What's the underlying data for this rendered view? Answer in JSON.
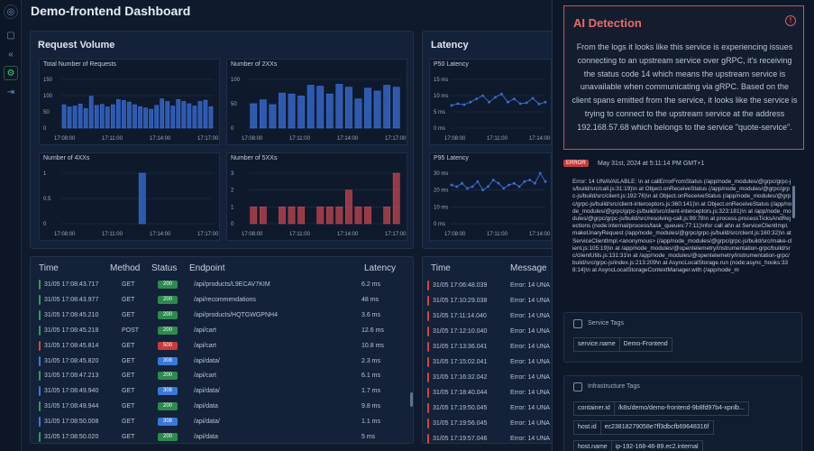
{
  "header": {
    "title": "Demo-frontend Dashboard"
  },
  "rail": [
    {
      "name": "globe-icon",
      "glyph": "◎"
    },
    {
      "name": "panel-icon",
      "glyph": "▢"
    },
    {
      "name": "collapse-icon",
      "glyph": "«"
    },
    {
      "name": "settings-icon",
      "glyph": "⚙"
    },
    {
      "name": "expand-icon",
      "glyph": "⇥"
    }
  ],
  "request_volume": {
    "title": "Request Volume",
    "charts": [
      {
        "title": "Total Number of Requests",
        "yticks": [
          "150",
          "100",
          "50",
          "0"
        ],
        "ymax": 150,
        "xticks": [
          "17:08:00",
          "17:11:00",
          "17:14:00",
          "17:17:00"
        ],
        "color": "#3a6fd8",
        "values": [
          72,
          65,
          68,
          74,
          60,
          98,
          70,
          73,
          65,
          72,
          88,
          85,
          80,
          72,
          66,
          62,
          58,
          70,
          90,
          82,
          68,
          88,
          82,
          75,
          68,
          82,
          86,
          66
        ]
      },
      {
        "title": "Number of 2XXs",
        "yticks": [
          "100",
          "50",
          "0"
        ],
        "ymax": 100,
        "xticks": [
          "17:08:00",
          "17:11:00",
          "17:14:00",
          "17:17:00"
        ],
        "color": "#3a6fd8",
        "values": [
          50,
          58,
          48,
          72,
          70,
          66,
          88,
          86,
          70,
          90,
          84,
          60,
          82,
          76,
          88,
          84
        ]
      },
      {
        "title": "Number of 4XXs",
        "yticks": [
          "1",
          "0.5",
          "0"
        ],
        "ymax": 1,
        "xticks": [
          "17:08:00",
          "17:11:00",
          "17:14:00",
          "17:17:00"
        ],
        "color": "#3a6fd8",
        "values": [
          0,
          0,
          0,
          0,
          0,
          0,
          0,
          0,
          1,
          0,
          0,
          0,
          0,
          0,
          0,
          0
        ]
      },
      {
        "title": "Number of 5XXs",
        "yticks": [
          "3",
          "2",
          "1",
          "0"
        ],
        "ymax": 3,
        "xticks": [
          "17:08:00",
          "17:11:00",
          "17:14:00",
          "17:17:00"
        ],
        "color": "#c4454f",
        "values": [
          1,
          1,
          0,
          1,
          1,
          1,
          0,
          1,
          1,
          1,
          2,
          1,
          1,
          0,
          1,
          3
        ]
      }
    ]
  },
  "latency": {
    "title": "Latency",
    "charts": [
      {
        "title": "P50 Latency",
        "yticks": [
          "15 ms",
          "10 ms",
          "5 ms",
          "0 ms"
        ],
        "ymax": 15,
        "xticks": [
          "17:08:00",
          "17:11:00",
          "17:14:00"
        ],
        "values": [
          7,
          7.5,
          7.2,
          8,
          9,
          10,
          8,
          9.5,
          10.5,
          8,
          9,
          7.5,
          7.8,
          9.2,
          7.4,
          8
        ]
      },
      {
        "title": "P95 Latency",
        "yticks": [
          "30 ms",
          "20 ms",
          "10 ms",
          "0 ms"
        ],
        "ymax": 30,
        "xticks": [
          "17:08:00",
          "17:11:00",
          "17:14:00"
        ],
        "values": [
          23,
          22,
          24,
          21,
          22,
          25,
          20,
          22,
          26,
          24,
          21,
          23,
          24,
          22,
          25,
          26,
          24,
          30,
          25
        ]
      }
    ]
  },
  "requests_table": {
    "headers": {
      "time": "Time",
      "method": "Method",
      "status": "Status",
      "endpoint": "Endpoint",
      "latency": "Latency"
    },
    "rows": [
      {
        "time": "31/05 17:08:43.717",
        "method": "GET",
        "status": "200",
        "endpoint": "/api/products/L9ECAV7KIM",
        "latency": "6.2 ms",
        "color": "#2e9c5a"
      },
      {
        "time": "31/05 17:08:43.977",
        "method": "GET",
        "status": "200",
        "endpoint": "/api/recommendations",
        "latency": "48 ms",
        "color": "#2e9c5a"
      },
      {
        "time": "31/05 17:08:45.210",
        "method": "GET",
        "status": "200",
        "endpoint": "/api/products/HQTGWGPNH4",
        "latency": "3.6 ms",
        "color": "#2e9c5a"
      },
      {
        "time": "31/05 17:08:45.218",
        "method": "POST",
        "status": "200",
        "endpoint": "/api/cart",
        "latency": "12.6 ms",
        "color": "#2e9c5a"
      },
      {
        "time": "31/05 17:08:45.814",
        "method": "GET",
        "status": "500",
        "endpoint": "/api/cart",
        "latency": "10.8 ms",
        "color": "#d6443c"
      },
      {
        "time": "31/05 17:08:45.820",
        "method": "GET",
        "status": "308",
        "endpoint": "/api/data/",
        "latency": "2.3 ms",
        "color": "#3a78d8"
      },
      {
        "time": "31/05 17:08:47.213",
        "method": "GET",
        "status": "200",
        "endpoint": "/api/cart",
        "latency": "6.1 ms",
        "color": "#2e9c5a"
      },
      {
        "time": "31/05 17:08:49.940",
        "method": "GET",
        "status": "308",
        "endpoint": "/api/data/",
        "latency": "1.7 ms",
        "color": "#3a78d8"
      },
      {
        "time": "31/05 17:08:49.944",
        "method": "GET",
        "status": "200",
        "endpoint": "/api/data",
        "latency": "9.8 ms",
        "color": "#2e9c5a"
      },
      {
        "time": "31/05 17:08:50.008",
        "method": "GET",
        "status": "308",
        "endpoint": "/api/data/",
        "latency": "1.1 ms",
        "color": "#3a78d8"
      },
      {
        "time": "31/05 17:08:50.020",
        "method": "GET",
        "status": "200",
        "endpoint": "/api/data",
        "latency": "5 ms",
        "color": "#2e9c5a"
      }
    ]
  },
  "logs_table": {
    "headers": {
      "time": "Time",
      "message": "Message"
    },
    "rows": [
      {
        "time": "31/05 17:06:48.039",
        "message": "Error: 14 UNA"
      },
      {
        "time": "31/05 17:10:29.038",
        "message": "Error: 14 UNA"
      },
      {
        "time": "31/05 17:11:14.040",
        "message": "Error: 14 UNA"
      },
      {
        "time": "31/05 17:12:10.040",
        "message": "Error: 14 UNA"
      },
      {
        "time": "31/05 17:13:36.041",
        "message": "Error: 14 UNA"
      },
      {
        "time": "31/05 17:15:02.041",
        "message": "Error: 14 UNA"
      },
      {
        "time": "31/05 17:16:32.042",
        "message": "Error: 14 UNA"
      },
      {
        "time": "31/05 17:18:40.044",
        "message": "Error: 14 UNA"
      },
      {
        "time": "31/05 17:19:50.045",
        "message": "Error: 14 UNA"
      },
      {
        "time": "31/05 17:19:56.045",
        "message": "Error: 14 UNA"
      },
      {
        "time": "31/05 17:19:57.046",
        "message": "Error: 14 UNA"
      }
    ]
  },
  "ai_detection": {
    "title": "AI Detection",
    "text": "From the logs it looks like this service is experiencing issues connecting to an upstream service over gRPC, it's receiving the status code 14 which means the upstream service is unavailable when communicating via gRPC. Based on the client spans emitted from the service, it looks like the service is trying to connect to the upstream service at the address 192.168.57.68 which belongs to the service \"quote-service\"."
  },
  "error_log": {
    "badge": "ERROR",
    "date": "May 31st, 2024 at 5:11:14 PM GMT+1",
    "text": "Error: 14 UNAVAILABLE: \\n at callErrorFromStatus (/app/node_modules/@grpc/grpc-js/build/src/call.js:31:19)\\n at Object.onReceiveStatus (/app/node_modules/@grpc/grpc-js/build/src/client.js:192:76)\\n at Object.onReceiveStatus (/app/node_modules/@grpc/grpc-js/build/src/client-interceptors.js:360:141)\\n at Object.onReceiveStatus (/app/node_modules/@grpc/grpc-js/build/src/client-interceptors.js:323:181)\\n at /app/node_modules/@grpc/grpc-js/build/src/resolving-call.js:99:78\\n at process.processTicksAndRejections (node:internal/process/task_queues:77:11)\\nfor call at\\n at ServiceClientImpl.makeUnaryRequest (/app/node_modules/@grpc/grpc-js/build/src/client.js:160:32)\\n at ServiceClientImpl.<anonymous> (/app/node_modules/@grpc/grpc-js/build/src/make-client.js:105:19)\\n at /app/node_modules/@opentelemetry/instrumentation-grpc/build/src/clientUtils.js:131:31\\n at /app/node_modules/@opentelemetry/instrumentation-grpc/build/src/grpc-js/index.js:213:209\\n at AsyncLocalStorage.run (node:async_hooks:338:14)\\n at AsyncLocalStorageContextManager.with (/app/node_m"
  },
  "service_tags": {
    "title": "Service Tags",
    "tags": [
      {
        "key": "service.name",
        "value": "Demo-Frontend"
      }
    ]
  },
  "infra_tags": {
    "title": "Infrastructure Tags",
    "tags": [
      {
        "key": "container.id",
        "value": "/k8s/demo/demo-frontend-9b8fd97b4-xpnlb..."
      },
      {
        "key": "host.id",
        "value": "ec23818279058e7ff3dbcfb69648316f"
      },
      {
        "key": "host.name",
        "value": "ip-192-168-46-89.ec2.internal"
      }
    ]
  }
}
